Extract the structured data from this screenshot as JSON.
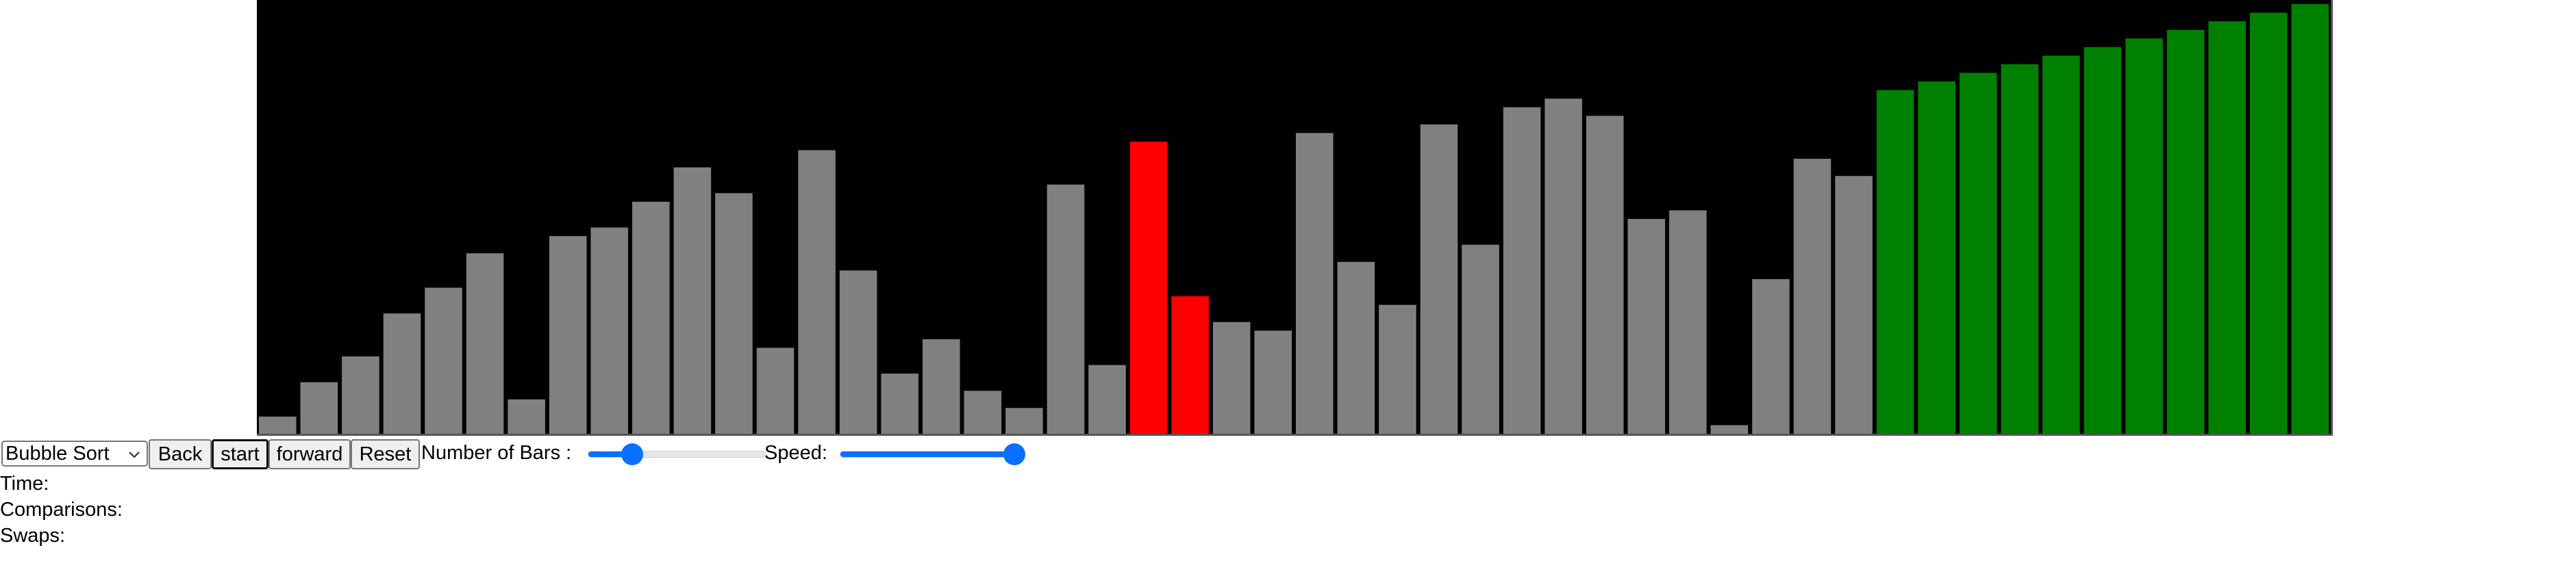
{
  "controls": {
    "algorithm_select": {
      "selected": "Bubble Sort"
    },
    "back_label": "Back",
    "start_label": "start",
    "forward_label": "forward",
    "reset_label": "Reset",
    "bars_label": "Number of Bars :",
    "speed_label": "Speed:",
    "bars_slider_fraction": 0.25,
    "speed_slider_fraction": 0.98
  },
  "stats": {
    "time_label": "Time:",
    "comparisons_label": "Comparisons:",
    "swaps_label": "Swaps:"
  },
  "colors": {
    "background": "#000000",
    "unsorted": "#808080",
    "comparing": "#ff0000",
    "sorted": "#008000",
    "slider_accent": "#0a70ff"
  },
  "bars": [
    {
      "value": 4,
      "state": "unsorted"
    },
    {
      "value": 12,
      "state": "unsorted"
    },
    {
      "value": 18,
      "state": "unsorted"
    },
    {
      "value": 28,
      "state": "unsorted"
    },
    {
      "value": 34,
      "state": "unsorted"
    },
    {
      "value": 42,
      "state": "unsorted"
    },
    {
      "value": 8,
      "state": "unsorted"
    },
    {
      "value": 46,
      "state": "unsorted"
    },
    {
      "value": 48,
      "state": "unsorted"
    },
    {
      "value": 54,
      "state": "unsorted"
    },
    {
      "value": 62,
      "state": "unsorted"
    },
    {
      "value": 56,
      "state": "unsorted"
    },
    {
      "value": 20,
      "state": "unsorted"
    },
    {
      "value": 66,
      "state": "unsorted"
    },
    {
      "value": 38,
      "state": "unsorted"
    },
    {
      "value": 14,
      "state": "unsorted"
    },
    {
      "value": 22,
      "state": "unsorted"
    },
    {
      "value": 10,
      "state": "unsorted"
    },
    {
      "value": 6,
      "state": "unsorted"
    },
    {
      "value": 58,
      "state": "unsorted"
    },
    {
      "value": 16,
      "state": "unsorted"
    },
    {
      "value": 68,
      "state": "comparing"
    },
    {
      "value": 32,
      "state": "comparing"
    },
    {
      "value": 26,
      "state": "unsorted"
    },
    {
      "value": 24,
      "state": "unsorted"
    },
    {
      "value": 70,
      "state": "unsorted"
    },
    {
      "value": 40,
      "state": "unsorted"
    },
    {
      "value": 30,
      "state": "unsorted"
    },
    {
      "value": 72,
      "state": "unsorted"
    },
    {
      "value": 44,
      "state": "unsorted"
    },
    {
      "value": 76,
      "state": "unsorted"
    },
    {
      "value": 78,
      "state": "unsorted"
    },
    {
      "value": 74,
      "state": "unsorted"
    },
    {
      "value": 50,
      "state": "unsorted"
    },
    {
      "value": 52,
      "state": "unsorted"
    },
    {
      "value": 2,
      "state": "unsorted"
    },
    {
      "value": 36,
      "state": "unsorted"
    },
    {
      "value": 64,
      "state": "unsorted"
    },
    {
      "value": 60,
      "state": "unsorted"
    },
    {
      "value": 80,
      "state": "sorted"
    },
    {
      "value": 82,
      "state": "sorted"
    },
    {
      "value": 84,
      "state": "sorted"
    },
    {
      "value": 86,
      "state": "sorted"
    },
    {
      "value": 88,
      "state": "sorted"
    },
    {
      "value": 90,
      "state": "sorted"
    },
    {
      "value": 92,
      "state": "sorted"
    },
    {
      "value": 94,
      "state": "sorted"
    },
    {
      "value": 96,
      "state": "sorted"
    },
    {
      "value": 98,
      "state": "sorted"
    },
    {
      "value": 100,
      "state": "sorted"
    }
  ],
  "max_value": 100
}
